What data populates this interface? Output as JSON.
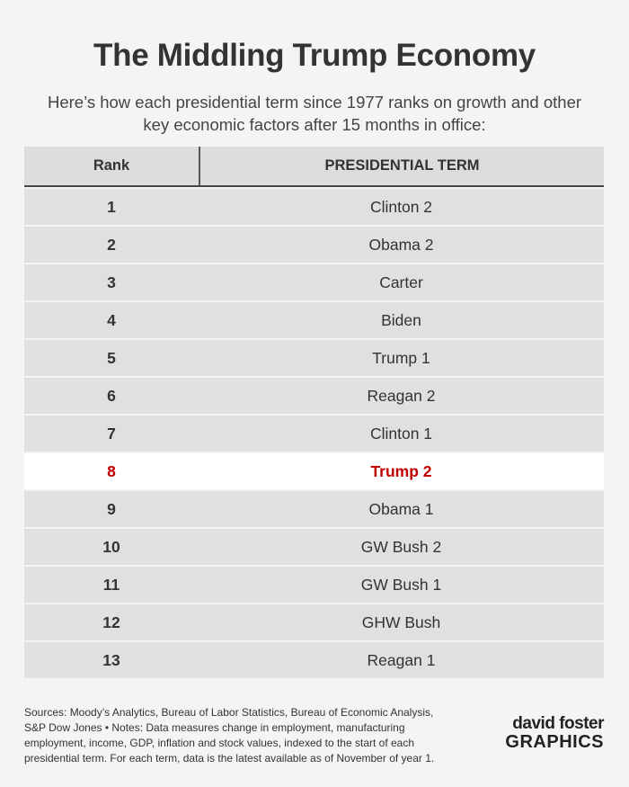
{
  "title": "The Middling Trump Economy",
  "subtitle": "Here’s how each presidential term since 1977 ranks on growth and other key economic factors after 15 months in office:",
  "table": {
    "columns": [
      "Rank",
      "PRESIDENTIAL TERM"
    ],
    "rows": [
      [
        "1",
        "Clinton 2"
      ],
      [
        "2",
        "Obama 2"
      ],
      [
        "3",
        "Carter"
      ],
      [
        "4",
        "Biden"
      ],
      [
        "5",
        "Trump 1"
      ],
      [
        "6",
        "Reagan 2"
      ],
      [
        "7",
        "Clinton 1"
      ],
      [
        "8",
        "Trump 2"
      ],
      [
        "9",
        "Obama 1"
      ],
      [
        "10",
        "GW Bush 2"
      ],
      [
        "11",
        "GW Bush 1"
      ],
      [
        "12",
        "GHW Bush"
      ],
      [
        "13",
        "Reagan 1"
      ]
    ]
  },
  "sources": "Sources: Moody’s Analytics, Bureau of Labor Statistics, Bureau of Economic Analysis, S&P Dow Jones • Notes: Data measures change in employment, manufacturing employment, income, GDP, inflation and stock values, indexed to the start of each presidential term. For each term, data is the latest available as of November of year 1.",
  "logo": {
    "line1": "david foster",
    "line2": "GRAPHICS"
  }
}
